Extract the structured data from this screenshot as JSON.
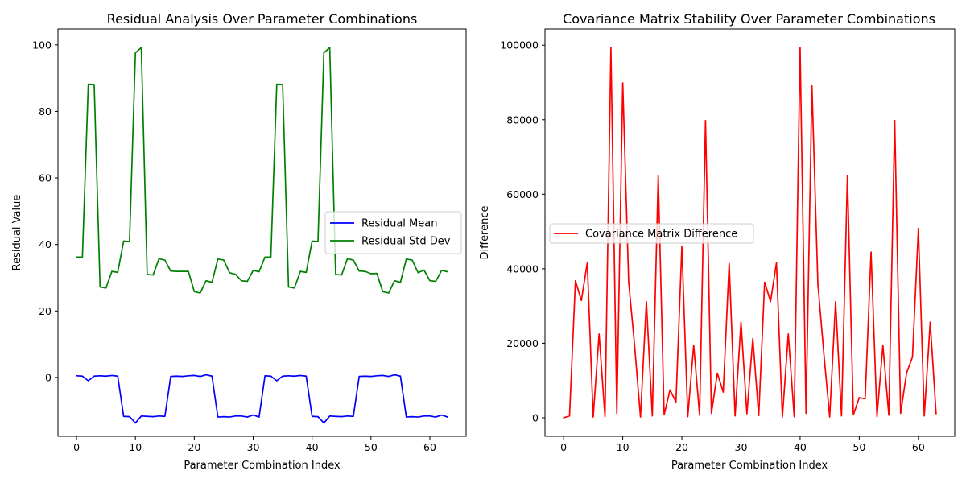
{
  "chart_data": [
    {
      "type": "line",
      "title": "Residual Analysis Over Parameter Combinations",
      "xlabel": "Parameter Combination Index",
      "ylabel": "Residual Value",
      "xlim": [
        -3.15,
        66.15
      ],
      "ylim": [
        -17.7,
        104.8
      ],
      "xticks": [
        0,
        10,
        20,
        30,
        40,
        50,
        60
      ],
      "yticks": [
        0,
        20,
        40,
        60,
        80,
        100
      ],
      "legend_position": "center right",
      "grid": false,
      "series": [
        {
          "name": "Residual Mean",
          "color": "#0000ff",
          "values": [
            0.5,
            0.4,
            -1.0,
            0.4,
            0.5,
            0.4,
            0.6,
            0.4,
            -11.7,
            -11.8,
            -13.7,
            -11.6,
            -11.7,
            -11.8,
            -11.6,
            -11.7,
            0.3,
            0.4,
            0.3,
            0.5,
            0.6,
            0.3,
            0.8,
            0.4,
            -11.9,
            -11.8,
            -11.9,
            -11.6,
            -11.6,
            -11.9,
            -11.3,
            -11.9,
            0.5,
            0.4,
            -1.0,
            0.4,
            0.5,
            0.4,
            0.6,
            0.4,
            -11.7,
            -11.8,
            -13.7,
            -11.6,
            -11.7,
            -11.8,
            -11.6,
            -11.7,
            0.3,
            0.4,
            0.3,
            0.5,
            0.6,
            0.3,
            0.8,
            0.4,
            -11.9,
            -11.8,
            -11.9,
            -11.6,
            -11.6,
            -11.9,
            -11.3,
            -11.9
          ]
        },
        {
          "name": "Residual Std Dev",
          "color": "#008000",
          "values": [
            36.2,
            36.2,
            88.2,
            88.1,
            27.2,
            26.9,
            31.9,
            31.6,
            41.0,
            40.9,
            97.6,
            99.2,
            31.0,
            30.8,
            35.7,
            35.3,
            32.0,
            31.9,
            31.9,
            31.9,
            25.8,
            25.4,
            29.1,
            28.6,
            35.6,
            35.3,
            31.5,
            31.0,
            29.1,
            28.9,
            32.2,
            31.8,
            36.2,
            36.2,
            88.2,
            88.1,
            27.2,
            26.9,
            31.9,
            31.6,
            41.0,
            40.9,
            97.6,
            99.2,
            31.0,
            30.8,
            35.7,
            35.3,
            32.0,
            31.9,
            31.2,
            31.3,
            25.8,
            25.4,
            29.1,
            28.6,
            35.6,
            35.3,
            31.5,
            32.3,
            29.1,
            28.9,
            32.2,
            31.8
          ]
        }
      ]
    },
    {
      "type": "line",
      "title": "Covariance Matrix Stability Over Parameter Combinations",
      "xlabel": "Parameter Combination Index",
      "ylabel": "Difference",
      "xlim": [
        -3.15,
        66.15
      ],
      "ylim": [
        -4970,
        104370
      ],
      "xticks": [
        0,
        10,
        20,
        30,
        40,
        50,
        60
      ],
      "yticks": [
        0,
        20000,
        40000,
        60000,
        80000,
        100000
      ],
      "legend_position": "center left",
      "grid": false,
      "series": [
        {
          "name": "Covariance Matrix Difference",
          "color": "#ff0000",
          "values": [
            0,
            500,
            36800,
            31500,
            41600,
            200,
            22500,
            300,
            99400,
            1200,
            89900,
            36500,
            19500,
            200,
            31200,
            500,
            65000,
            800,
            7500,
            4200,
            46000,
            300,
            19500,
            700,
            79800,
            1200,
            12000,
            6900,
            41500,
            500,
            25700,
            1100,
            21300,
            600,
            36400,
            31200,
            41600,
            200,
            22500,
            300,
            99400,
            1200,
            89200,
            36000,
            17500,
            200,
            31200,
            500,
            65000,
            800,
            5400,
            5100,
            44500,
            300,
            19500,
            700,
            79800,
            1200,
            12000,
            16300,
            50800,
            500,
            25700,
            1100
          ]
        }
      ]
    }
  ]
}
